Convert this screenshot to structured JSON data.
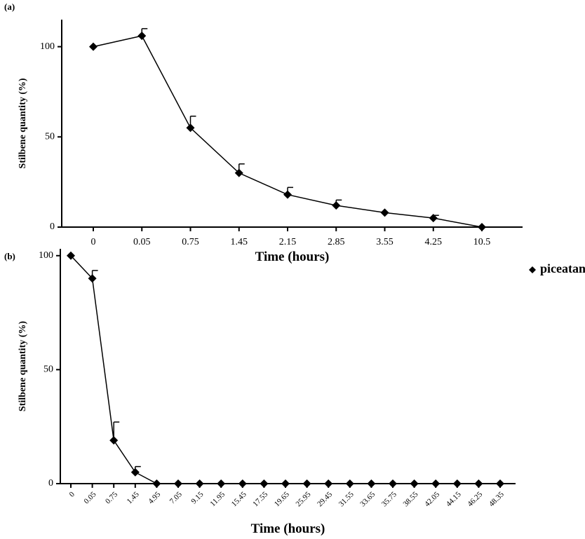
{
  "chart_data": [
    {
      "type": "line",
      "panel_label": "(a)",
      "x_label": "Time (hours)",
      "y_label": "Stilbene quantity (%)",
      "categories": [
        "0",
        "0.05",
        "0.75",
        "1.45",
        "2.15",
        "2.85",
        "3.55",
        "4.25",
        "10.5"
      ],
      "series": [
        {
          "color": "#000000",
          "values": [
            100,
            106,
            55,
            30,
            18,
            12,
            8,
            5,
            0
          ],
          "errors": [
            null,
            4,
            6.5,
            5,
            4,
            3,
            null,
            1.5,
            null
          ]
        }
      ],
      "ylim": [
        0,
        115
      ],
      "yticks": [
        0,
        50,
        100
      ]
    },
    {
      "type": "line",
      "panel_label": "(b)",
      "x_label": "Time (hours)",
      "y_label": "Stilbene quantity (%)",
      "categories": [
        "0",
        "0.05",
        "0.75",
        "1.45",
        "4.95",
        "7.05",
        "9.15",
        "11.95",
        "15.45",
        "17.55",
        "19.65",
        "25.95",
        "29.45",
        "31.55",
        "33.65",
        "35.75",
        "38.55",
        "42.05",
        "44.15",
        "46.25",
        "48.35"
      ],
      "series": [
        {
          "name": "piceatannol",
          "color": "#000000",
          "values": [
            100,
            90,
            19,
            5,
            0,
            0,
            0,
            0,
            0,
            0,
            0,
            0,
            0,
            0,
            0,
            0,
            0,
            0,
            0,
            0,
            0
          ],
          "errors": [
            null,
            3.5,
            8,
            2.5,
            null,
            null,
            null,
            null,
            null,
            null,
            null,
            null,
            null,
            null,
            null,
            null,
            null,
            null,
            null,
            null,
            null
          ]
        }
      ],
      "ylim": [
        0,
        103
      ],
      "yticks": [
        0,
        50,
        100
      ],
      "legend": "top-right"
    }
  ]
}
